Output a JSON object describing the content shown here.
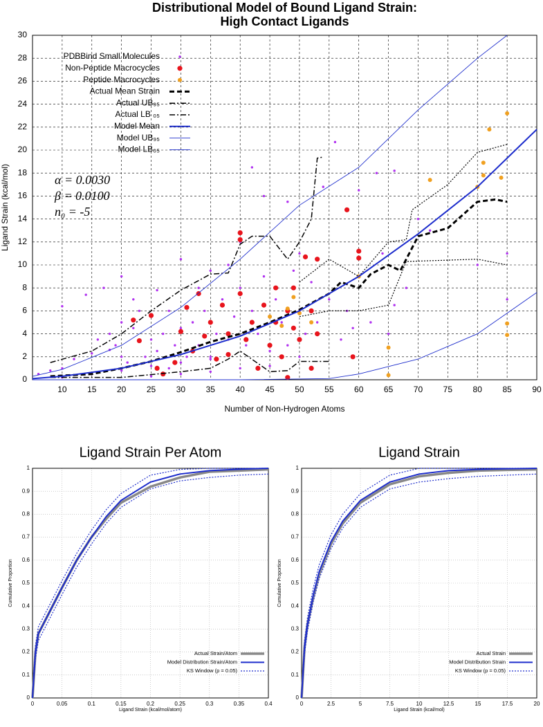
{
  "chart_data": [
    {
      "type": "scatter",
      "title": [
        "Distributional Model of Bound Ligand Strain:",
        "High Contact Ligands"
      ],
      "x_label": "Number of Non-Hydrogen Atoms",
      "y_label": "Ligand Strain (kcal/mol)",
      "xlim": [
        5,
        90
      ],
      "xticks": [
        10,
        15,
        20,
        25,
        30,
        35,
        40,
        45,
        50,
        55,
        60,
        65,
        70,
        75,
        80,
        85,
        90
      ],
      "ylim": [
        0,
        30
      ],
      "yticks": [
        0,
        2,
        4,
        6,
        8,
        10,
        12,
        14,
        16,
        18,
        20,
        22,
        24,
        26,
        28,
        30
      ],
      "grid": true,
      "legend": "upper left",
      "annotations": [
        "α = 0.0030",
        "β = 0.0100",
        "n₀ = -5"
      ],
      "series": [
        {
          "name": "PDBBind Small Molecules",
          "color": "#b030f0",
          "style": "point-small",
          "x": [
            6,
            8,
            10,
            10,
            12,
            14,
            15,
            16,
            17,
            18,
            18,
            19,
            20,
            20,
            21,
            22,
            22,
            23,
            24,
            25,
            25,
            26,
            26,
            27,
            28,
            28,
            29,
            30,
            30,
            31,
            32,
            33,
            33,
            34,
            35,
            35,
            36,
            37,
            38,
            38,
            39,
            40,
            40,
            41,
            42,
            42,
            43,
            44,
            44,
            45,
            46,
            47,
            48,
            48,
            49,
            50,
            50,
            51,
            52,
            53,
            54,
            55,
            56,
            57,
            58,
            59,
            60,
            60,
            62,
            63,
            64,
            65,
            66,
            66,
            68,
            70,
            72,
            80,
            85,
            85,
            10,
            15,
            20,
            25,
            30,
            35,
            20,
            25,
            30,
            35,
            40,
            45,
            50
          ],
          "values": [
            0.5,
            0.8,
            6.4,
            1,
            1.8,
            7.4,
            2.3,
            3.5,
            8,
            2.6,
            4,
            3,
            9,
            5,
            1.5,
            4.5,
            7,
            6,
            2,
            3.5,
            5.5,
            2.5,
            7.8,
            4,
            1,
            6,
            3,
            10.5,
            4.5,
            2,
            5,
            8,
            3,
            6,
            9.5,
            2,
            4,
            7,
            3.5,
            10,
            5.5,
            12,
            8,
            3,
            18.5,
            6,
            4,
            16,
            9,
            2.5,
            7,
            5,
            15.5,
            3,
            9.5,
            6,
            11,
            4,
            8.5,
            5,
            16.8,
            7,
            20.7,
            3.5,
            6,
            4.5,
            16.5,
            9,
            5,
            18,
            11,
            4,
            18.2,
            6.5,
            8,
            14,
            13,
            10,
            11,
            7,
            0.2,
            0.5,
            0.8,
            1.2,
            1.5,
            1.8,
            2,
            0.3,
            0.5,
            0.7,
            1,
            1.2,
            2
          ]
        },
        {
          "name": "Non-Peptide Macrocycles",
          "color": "#e8141c",
          "style": "point-large",
          "x": [
            22,
            23,
            25,
            26,
            27,
            29,
            30,
            31,
            32,
            33,
            34,
            35,
            36,
            37,
            38,
            38,
            40,
            40,
            40,
            41,
            42,
            43,
            44,
            45,
            46,
            46,
            47,
            48,
            48,
            49,
            49,
            50,
            51,
            52,
            52,
            53,
            53,
            58,
            59,
            60,
            60
          ],
          "values": [
            5.2,
            3.4,
            5.6,
            1,
            0.5,
            1.5,
            4.2,
            6.3,
            2.5,
            7.5,
            3.8,
            5,
            1.8,
            6.5,
            2.2,
            4,
            12.8,
            12.2,
            7.5,
            3.5,
            5,
            1,
            6.5,
            3,
            8,
            5,
            2,
            0.2,
            6,
            4.5,
            8,
            3.5,
            10.7,
            6,
            1,
            10.5,
            4,
            14.8,
            2,
            11.2,
            10.6
          ]
        },
        {
          "name": "Peptide Macrocycles",
          "color": "#f0a020",
          "style": "point-medium",
          "x": [
            45,
            47,
            48,
            49,
            50,
            52,
            60,
            65,
            65,
            72,
            80,
            81,
            81,
            82,
            84,
            85,
            85,
            85
          ],
          "values": [
            5.5,
            4.7,
            6.2,
            7.2,
            5.8,
            5,
            9,
            2.8,
            0.4,
            17.4,
            16.8,
            17.8,
            18.9,
            21.8,
            17.6,
            23.2,
            4.9,
            3.9
          ]
        },
        {
          "name": "Actual Mean Strain",
          "color": "#000000",
          "style": "thick-dashed",
          "x": [
            8,
            15,
            20,
            25,
            30,
            35,
            40,
            45,
            50,
            55,
            57,
            60,
            62,
            65,
            67,
            70,
            75,
            80,
            83,
            85
          ],
          "values": [
            0.3,
            0.5,
            1,
            1.6,
            2.4,
            3.3,
            4,
            5,
            6.1,
            7.5,
            8.5,
            8,
            9.2,
            10,
            9.5,
            12.5,
            13.2,
            15.5,
            15.7,
            15.5
          ]
        },
        {
          "name": "Actual UB₉₅",
          "color": "#000000",
          "style": "dash-dot",
          "x": [
            8,
            15,
            20,
            25,
            30,
            35,
            38,
            40,
            42,
            45,
            48,
            50,
            52,
            53,
            54
          ],
          "values": [
            1.5,
            2.5,
            4,
            6,
            7.8,
            9.2,
            9.3,
            11.8,
            12.5,
            12.5,
            10.5,
            12,
            14,
            19.3,
            19.4
          ]
        },
        {
          "name": "Actual LB ₀₅",
          "color": "#000000",
          "style": "dash-dot",
          "x": [
            8,
            20,
            30,
            35,
            38,
            40,
            45,
            48,
            50,
            55
          ],
          "values": [
            0.2,
            0.2,
            0.7,
            1,
            1.8,
            2.5,
            0.7,
            0.8,
            1.6,
            1.6
          ]
        },
        {
          "color": "#000000",
          "style": "dotted",
          "x": [
            50,
            55,
            60,
            65,
            68,
            69,
            75,
            80,
            85
          ],
          "values": [
            8.5,
            10.5,
            9,
            12,
            12.2,
            14.8,
            17,
            19.8,
            20.5
          ]
        },
        {
          "color": "#000000",
          "style": "dotted",
          "x": [
            50,
            55,
            60,
            65,
            68,
            80,
            85
          ],
          "values": [
            5.5,
            6,
            6,
            6.5,
            10.3,
            10.5,
            10
          ]
        },
        {
          "name": "Model Mean",
          "color": "#1c2ccc",
          "style": "thick-solid",
          "x": [
            5,
            10,
            20,
            30,
            40,
            50,
            60,
            70,
            80,
            90
          ],
          "values": [
            0.1,
            0.3,
            1,
            2.2,
            3.8,
            6,
            9,
            12.7,
            16.8,
            21.8
          ]
        },
        {
          "name": "Model UB₉₅",
          "color": "#1c2ccc",
          "style": "thin-solid",
          "x": [
            5,
            10,
            20,
            30,
            40,
            50,
            60,
            70,
            80,
            85
          ],
          "values": [
            0.3,
            0.9,
            3,
            6.3,
            10.5,
            15.2,
            18.5,
            23.5,
            28,
            30
          ]
        },
        {
          "name": "Model LB₀₅",
          "color": "#1c2ccc",
          "style": "thin-solid",
          "x": [
            5,
            40,
            55,
            60,
            70,
            80,
            90
          ],
          "values": [
            0,
            0,
            0.1,
            0.5,
            1.8,
            4,
            7.6
          ]
        }
      ]
    },
    {
      "type": "line",
      "title": "Ligand Strain Per Atom",
      "x_label": "Ligand Strain (kcal/mol/atom)",
      "y_label": "Cumulative Proportion",
      "xlim": [
        0,
        0.4
      ],
      "xticks": [
        0,
        0.05,
        0.1,
        0.15,
        0.2,
        0.25,
        0.3,
        0.35,
        0.4
      ],
      "ylim": [
        0,
        1
      ],
      "yticks": [
        0,
        0.1,
        0.2,
        0.3,
        0.4,
        0.5,
        0.6,
        0.7,
        0.8,
        0.9,
        1
      ],
      "grid": true,
      "legend": "lower right",
      "x": [
        0,
        0.005,
        0.01,
        0.02,
        0.03,
        0.05,
        0.075,
        0.1,
        0.125,
        0.15,
        0.2,
        0.25,
        0.3,
        0.35,
        0.4
      ],
      "series": [
        {
          "name": "Actual Strain/Atom",
          "color": "#888888",
          "style": "thick-gray",
          "values": [
            0,
            0.2,
            0.28,
            0.33,
            0.38,
            0.48,
            0.6,
            0.7,
            0.78,
            0.85,
            0.92,
            0.96,
            0.985,
            0.99,
            0.995
          ]
        },
        {
          "name": "Model Distribution Strain/Atom",
          "color": "#1c2ccc",
          "style": "thick-solid",
          "values": [
            0,
            0.2,
            0.28,
            0.33,
            0.38,
            0.48,
            0.6,
            0.7,
            0.79,
            0.86,
            0.94,
            0.975,
            0.99,
            0.996,
            1
          ]
        },
        {
          "name": "KS Window (p = 0.05)",
          "color": "#1c2ccc",
          "style": "dotted",
          "values": [
            0.02,
            0.23,
            0.31,
            0.36,
            0.41,
            0.51,
            0.63,
            0.73,
            0.82,
            0.89,
            0.97,
            0.995,
            1,
            1,
            1
          ]
        },
        {
          "color": "#1c2ccc",
          "style": "dotted",
          "values": [
            0,
            0.17,
            0.25,
            0.3,
            0.35,
            0.45,
            0.57,
            0.67,
            0.76,
            0.83,
            0.91,
            0.945,
            0.96,
            0.97,
            0.975
          ]
        }
      ]
    },
    {
      "type": "line",
      "title": "Ligand Strain",
      "x_label": "Ligand Strain (kcal/mol)",
      "y_label": "Cumulative Proportion",
      "xlim": [
        0,
        20
      ],
      "xticks": [
        0,
        2.5,
        5,
        7.5,
        10,
        12.5,
        15,
        17.5,
        20
      ],
      "ylim": [
        0,
        1
      ],
      "yticks": [
        0,
        0.1,
        0.2,
        0.3,
        0.4,
        0.5,
        0.6,
        0.7,
        0.8,
        0.9,
        1
      ],
      "grid": true,
      "legend": "lower right",
      "x": [
        0,
        0.25,
        0.5,
        1,
        1.5,
        2.5,
        3.5,
        5,
        7.5,
        10,
        12.5,
        15,
        17.5,
        20
      ],
      "series": [
        {
          "name": "Actual Strain",
          "color": "#888888",
          "style": "thick-gray",
          "values": [
            0,
            0.22,
            0.32,
            0.44,
            0.54,
            0.67,
            0.76,
            0.85,
            0.93,
            0.965,
            0.98,
            0.99,
            0.993,
            0.995
          ]
        },
        {
          "name": "Model Distribution Strain",
          "color": "#1c2ccc",
          "style": "thick-solid",
          "values": [
            0,
            0.22,
            0.32,
            0.45,
            0.55,
            0.68,
            0.77,
            0.86,
            0.94,
            0.975,
            0.99,
            0.995,
            0.998,
            1
          ]
        },
        {
          "name": "KS Window (p = 0.05)",
          "color": "#1c2ccc",
          "style": "dotted",
          "values": [
            0.02,
            0.25,
            0.35,
            0.48,
            0.58,
            0.71,
            0.8,
            0.89,
            0.97,
            1,
            1,
            1,
            1,
            1
          ]
        },
        {
          "color": "#1c2ccc",
          "style": "dotted",
          "values": [
            0,
            0.19,
            0.29,
            0.42,
            0.52,
            0.65,
            0.74,
            0.83,
            0.91,
            0.94,
            0.955,
            0.965,
            0.97,
            0.975
          ]
        }
      ]
    }
  ]
}
